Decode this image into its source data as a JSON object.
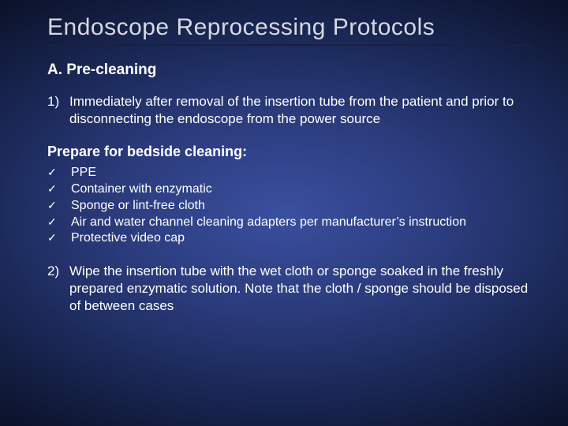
{
  "colors": {
    "background_center": "#3a4f9f",
    "background_mid": "#1a2856",
    "background_edge": "#050a1a",
    "title_color": "#d8d8e0",
    "text_color": "#ffffff",
    "underline_color": "#1a2040"
  },
  "typography": {
    "title_fontsize": 30,
    "section_heading_fontsize": 19,
    "body_fontsize": 17,
    "checklist_fontsize": 16,
    "font_family": "Verdana"
  },
  "title": "Endoscope Reprocessing Protocols",
  "section_a": {
    "heading": "A. Pre-cleaning",
    "item1": {
      "number": "1)",
      "text": "Immediately after removal of the insertion tube from the patient and prior to disconnecting the endoscope from the power source"
    },
    "prepare_heading": "Prepare for bedside cleaning:",
    "checklist": {
      "mark": "✓",
      "c1": "PPE",
      "c2": "Container with enzymatic",
      "c3": "Sponge or lint-free cloth",
      "c4": "Air and water channel cleaning adapters per manufacturer’s instruction",
      "c5": "Protective video cap"
    },
    "item2": {
      "number": "2)",
      "text": "Wipe the insertion tube with the wet cloth or sponge soaked in the freshly prepared enzymatic solution. Note that the cloth / sponge should be disposed of between cases"
    }
  }
}
